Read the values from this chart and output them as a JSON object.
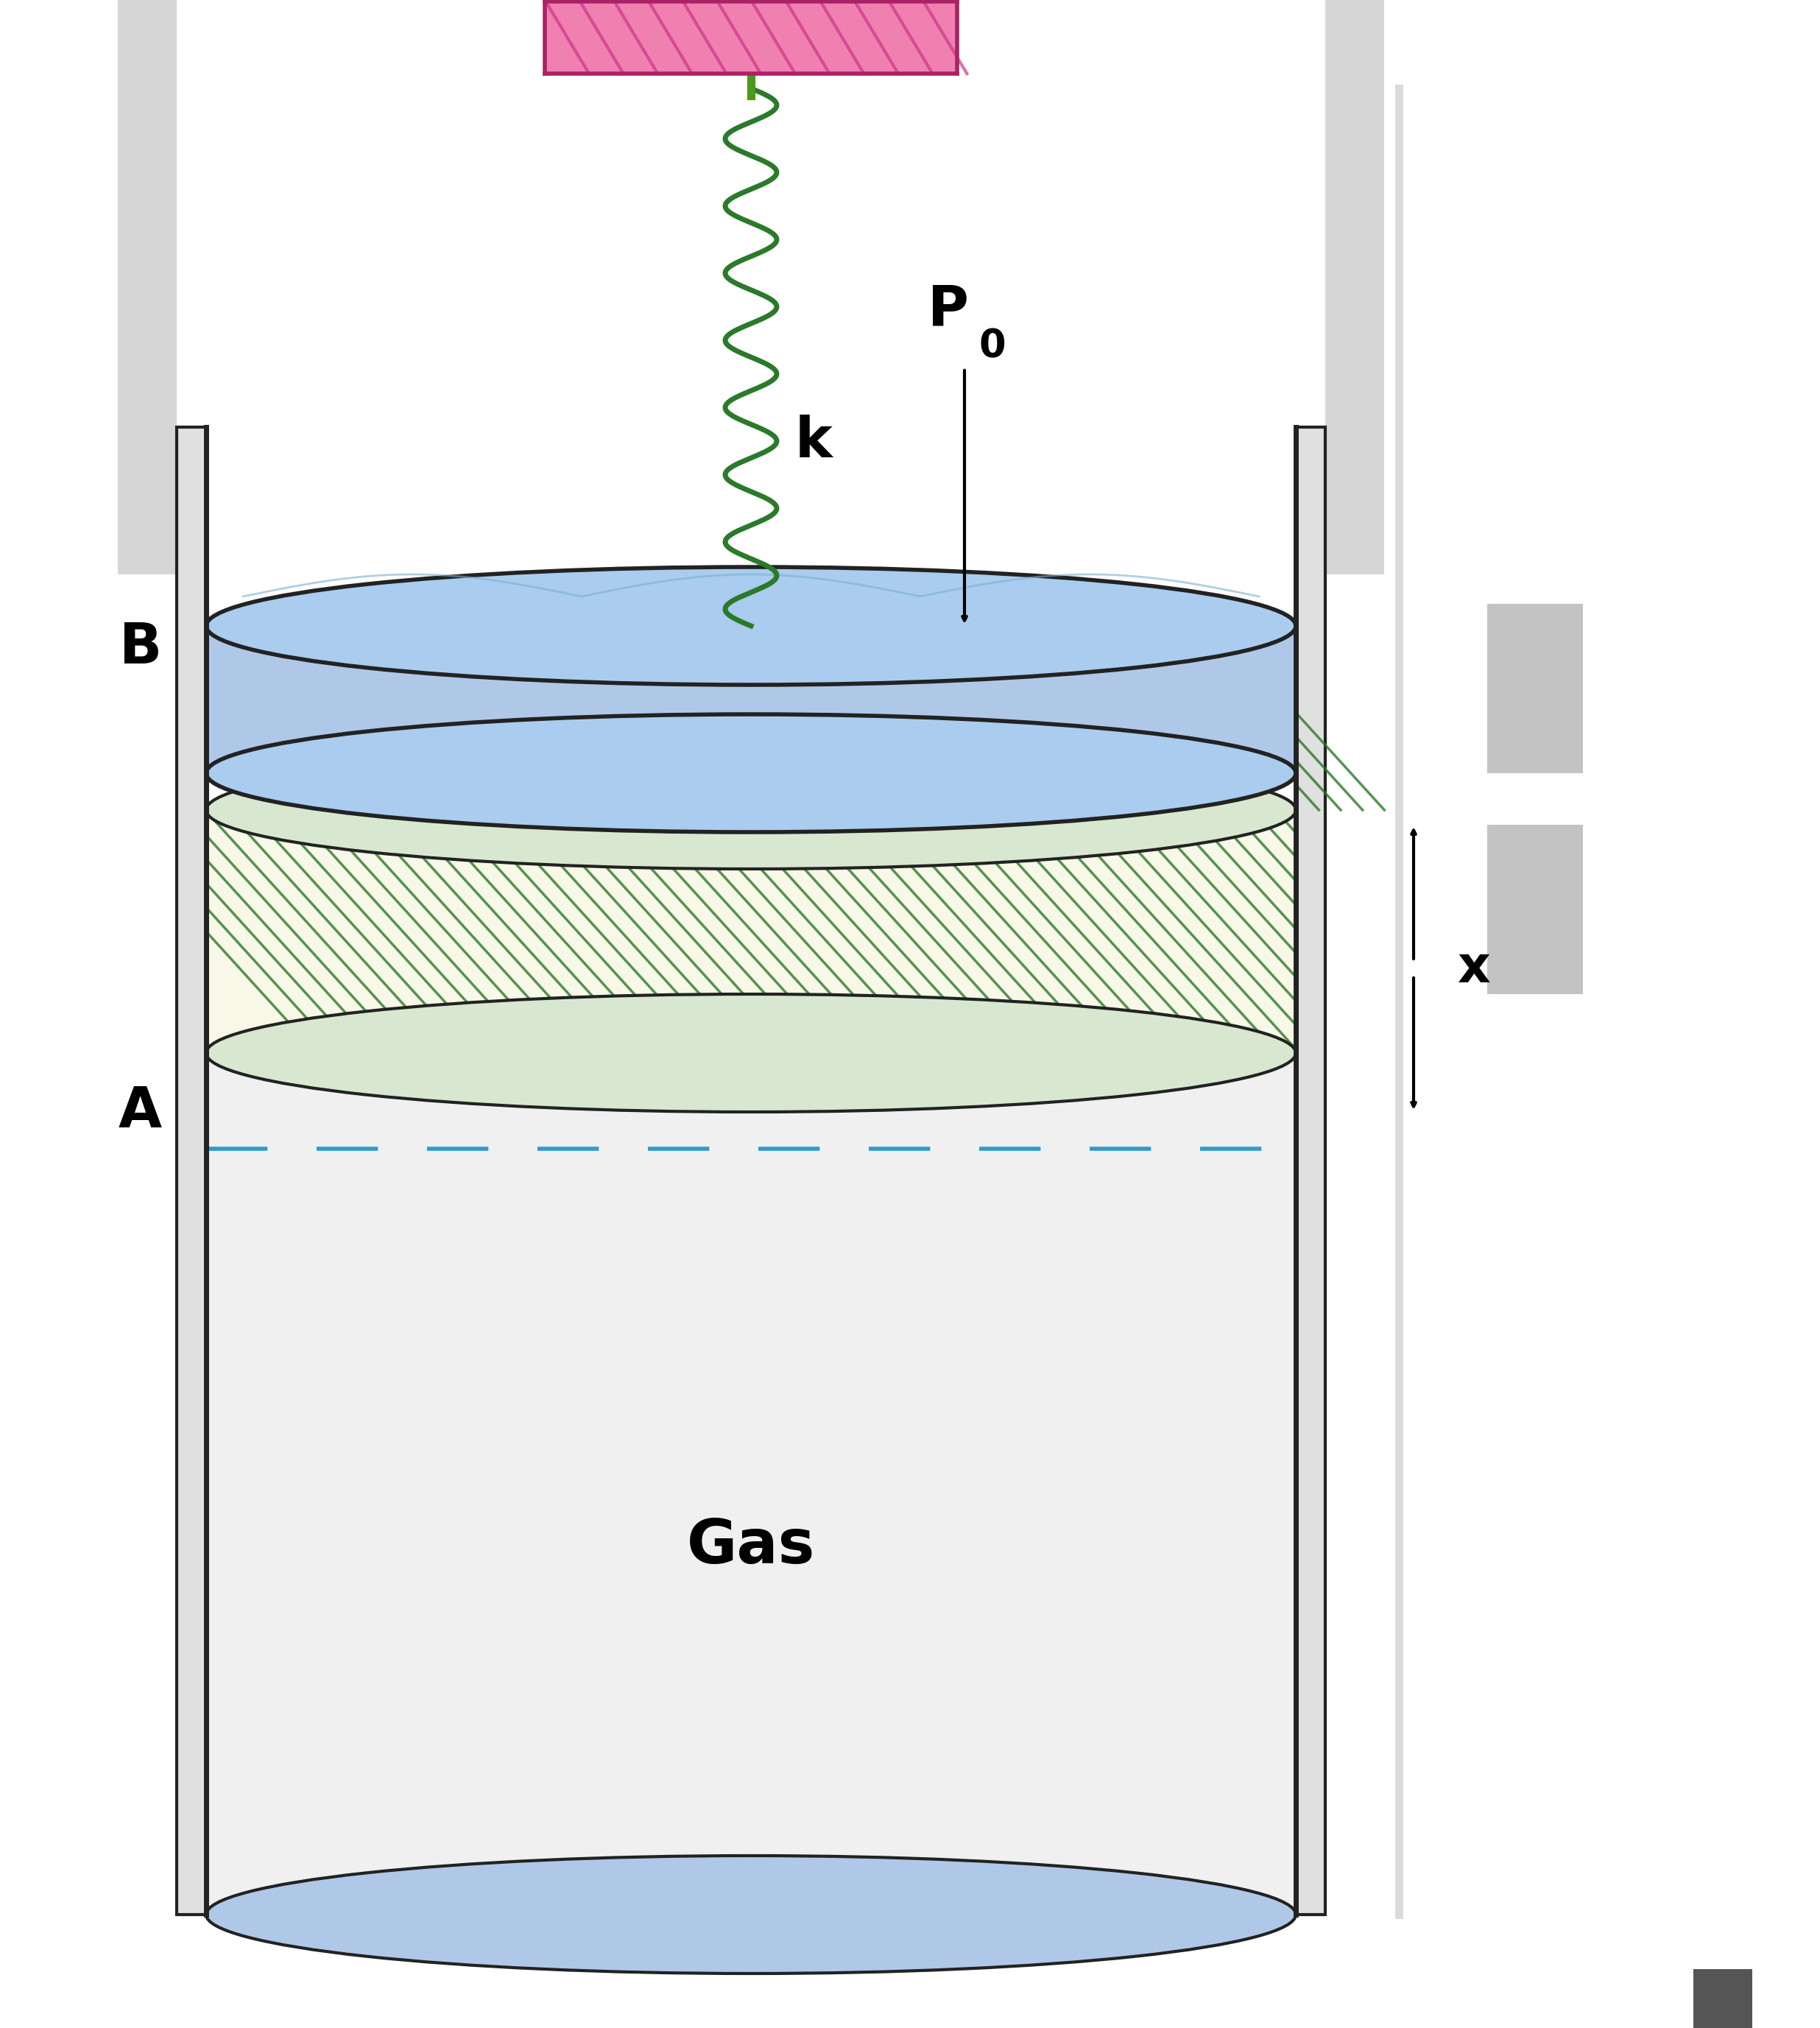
{
  "bg_color": "#ffffff",
  "cylinder_color": "#f5f5f5",
  "cylinder_border": "#222222",
  "gas_label": "Gas",
  "gas_label_fontsize": 60,
  "label_B": "B",
  "label_A": "A",
  "label_k": "k",
  "label_P0": "P",
  "label_x": "x",
  "piston_fill": "#b0c8e8",
  "spring_color": "#2a7a2a",
  "wall_color": "#cc3388",
  "wall_fill": "#f080b0",
  "hatch_color_green": "#2a7a2a",
  "hatch_color_blue": "#3399cc",
  "arrow_color": "#111111",
  "dashed_line_color": "#3399cc"
}
